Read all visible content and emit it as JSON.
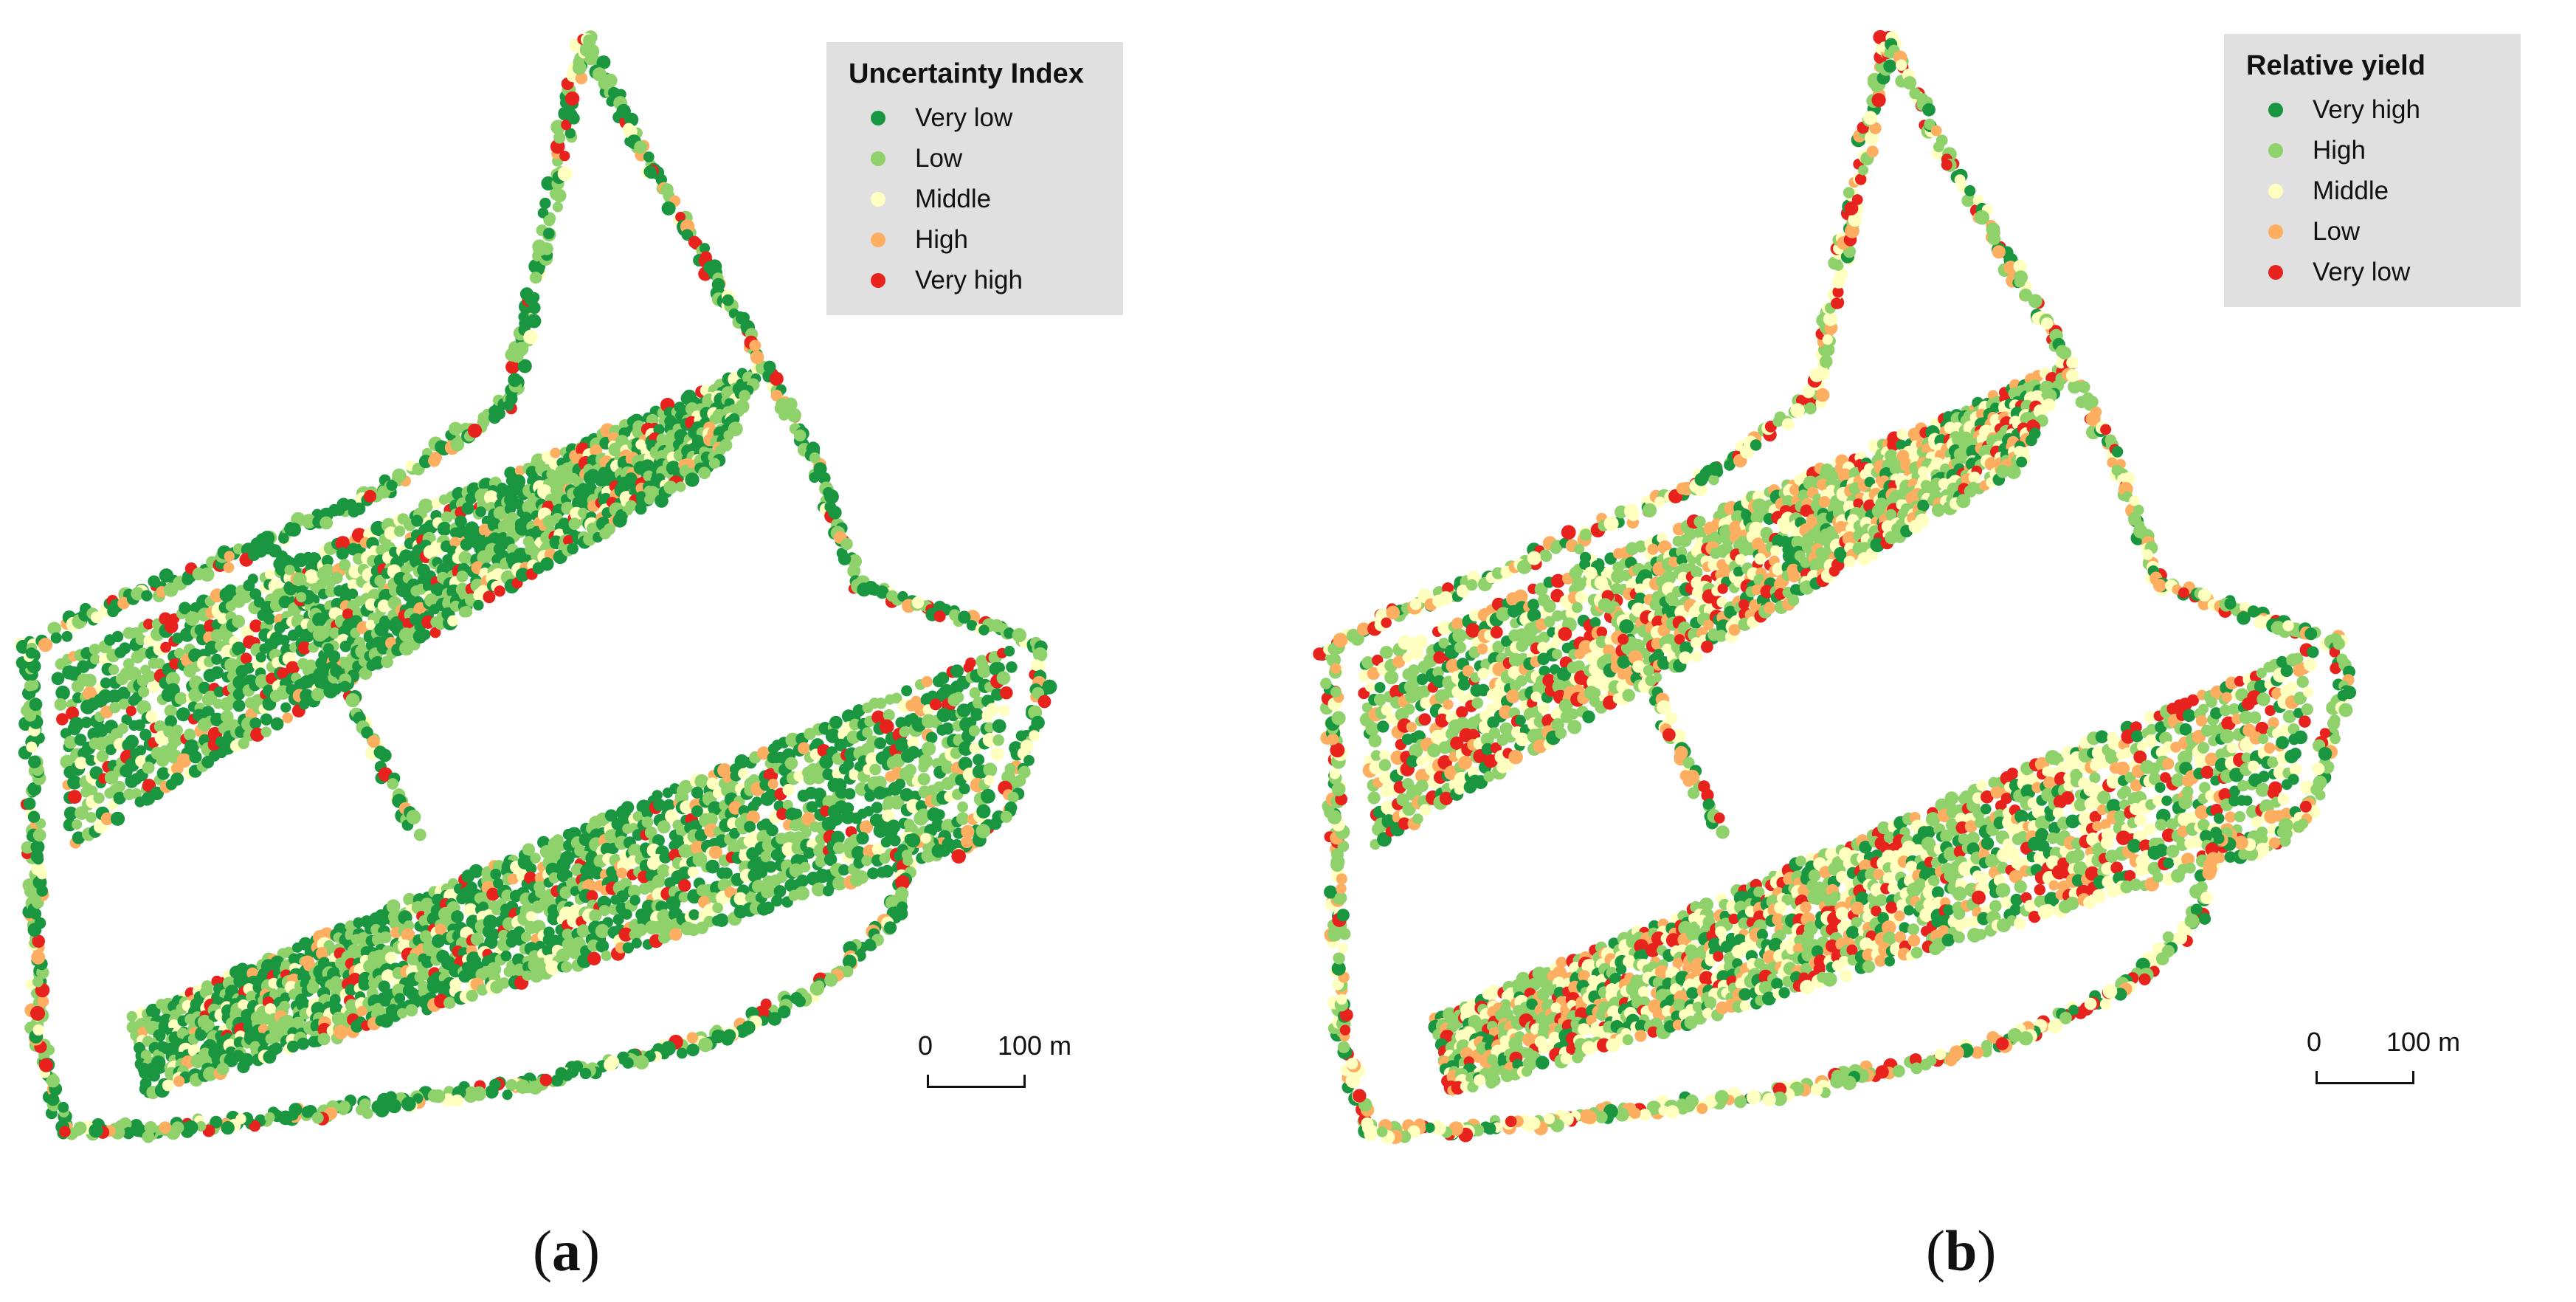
{
  "panels": [
    {
      "caption_letter": "a",
      "legend": {
        "title": "Uncertainty Index",
        "items": [
          {
            "label": "Very low",
            "color": "#1a9641"
          },
          {
            "label": "Low",
            "color": "#8fd16a"
          },
          {
            "label": "Middle",
            "color": "#ffffbf"
          },
          {
            "label": "High",
            "color": "#fdae61"
          },
          {
            "label": "Very high",
            "color": "#e8221c"
          }
        ]
      },
      "color_weights": [
        0.44,
        0.34,
        0.1,
        0.06,
        0.06
      ],
      "scale": {
        "start": "0",
        "end": "100",
        "unit": "m"
      }
    },
    {
      "caption_letter": "b",
      "legend": {
        "title": "Relative yield",
        "items": [
          {
            "label": "Very high",
            "color": "#1a9641"
          },
          {
            "label": "High",
            "color": "#8fd16a"
          },
          {
            "label": "Middle",
            "color": "#ffffbf"
          },
          {
            "label": "Low",
            "color": "#fdae61"
          },
          {
            "label": "Very low",
            "color": "#e8221c"
          }
        ]
      },
      "color_weights": [
        0.16,
        0.32,
        0.24,
        0.16,
        0.12
      ],
      "scale": {
        "start": "0",
        "end": "100",
        "unit": "m"
      }
    }
  ]
}
